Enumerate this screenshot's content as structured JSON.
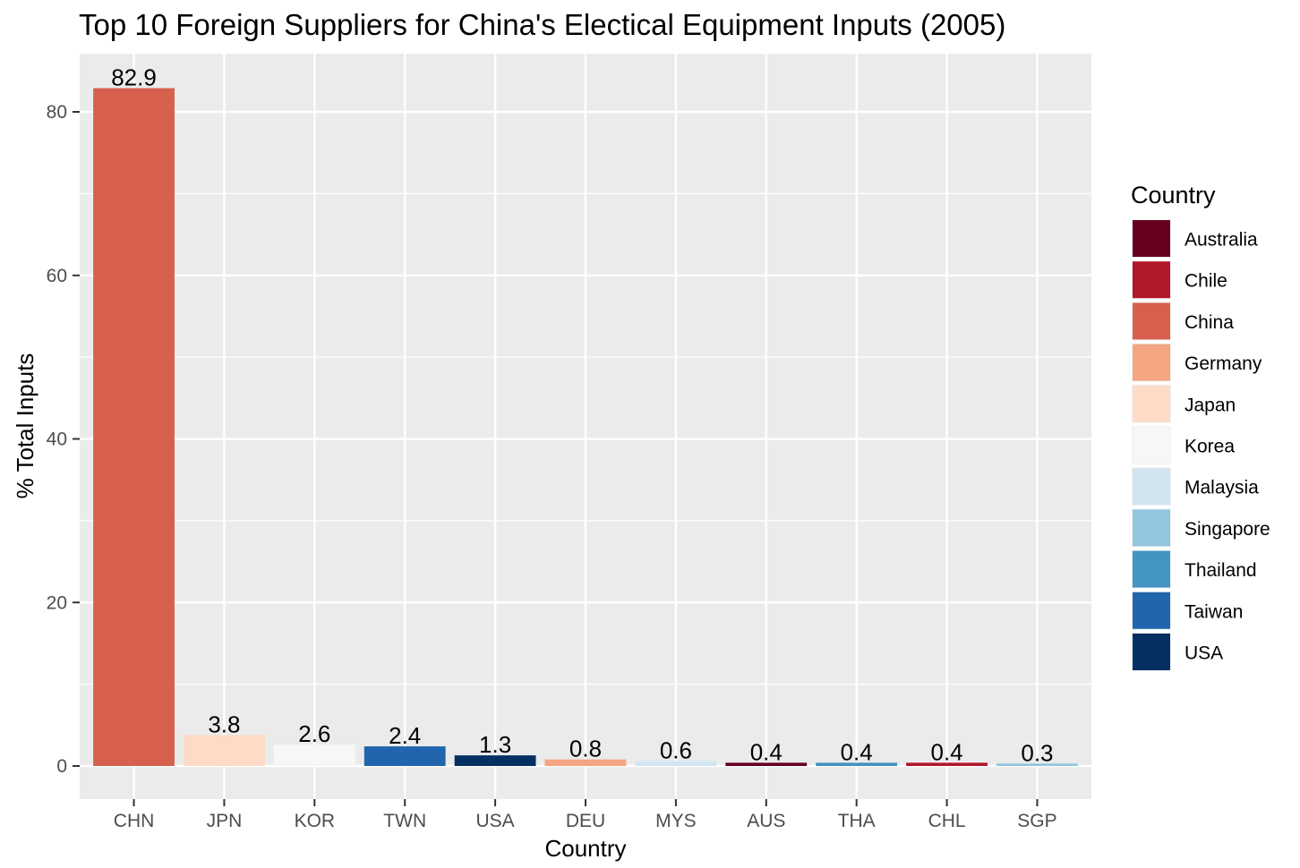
{
  "chart_data": {
    "type": "bar",
    "title": "Top 10 Foreign Suppliers for China's Electical Equipment Inputs (2005)",
    "xlabel": "Country",
    "ylabel": "% Total Inputs",
    "ylim": [
      0,
      87
    ],
    "yticks": [
      0,
      20,
      40,
      60,
      80
    ],
    "grid": true,
    "categories": [
      "CHN",
      "JPN",
      "KOR",
      "TWN",
      "USA",
      "DEU",
      "MYS",
      "AUS",
      "THA",
      "CHL",
      "SGP"
    ],
    "values": [
      82.9,
      3.8,
      2.6,
      2.4,
      1.3,
      0.8,
      0.6,
      0.4,
      0.4,
      0.4,
      0.3
    ],
    "value_labels": [
      "82.9",
      "3.8",
      "2.6",
      "2.4",
      "1.3",
      "0.8",
      "0.6",
      "0.4",
      "0.4",
      "0.4",
      "0.3"
    ],
    "fill_by": [
      "China",
      "Japan",
      "Korea",
      "Taiwan",
      "USA",
      "Germany",
      "Malaysia",
      "Australia",
      "Thailand",
      "Chile",
      "Singapore"
    ],
    "legend": {
      "title": "Country",
      "position": "right",
      "entries": [
        {
          "label": "Australia",
          "color": "#67001F"
        },
        {
          "label": "Chile",
          "color": "#B2182B"
        },
        {
          "label": "China",
          "color": "#D6604D"
        },
        {
          "label": "Germany",
          "color": "#F4A582"
        },
        {
          "label": "Japan",
          "color": "#FDDBC7"
        },
        {
          "label": "Korea",
          "color": "#F7F7F7"
        },
        {
          "label": "Malaysia",
          "color": "#D1E5F0"
        },
        {
          "label": "Singapore",
          "color": "#92C5DE"
        },
        {
          "label": "Thailand",
          "color": "#4393C3"
        },
        {
          "label": "Taiwan",
          "color": "#2166AC"
        },
        {
          "label": "USA",
          "color": "#053061"
        }
      ]
    }
  }
}
